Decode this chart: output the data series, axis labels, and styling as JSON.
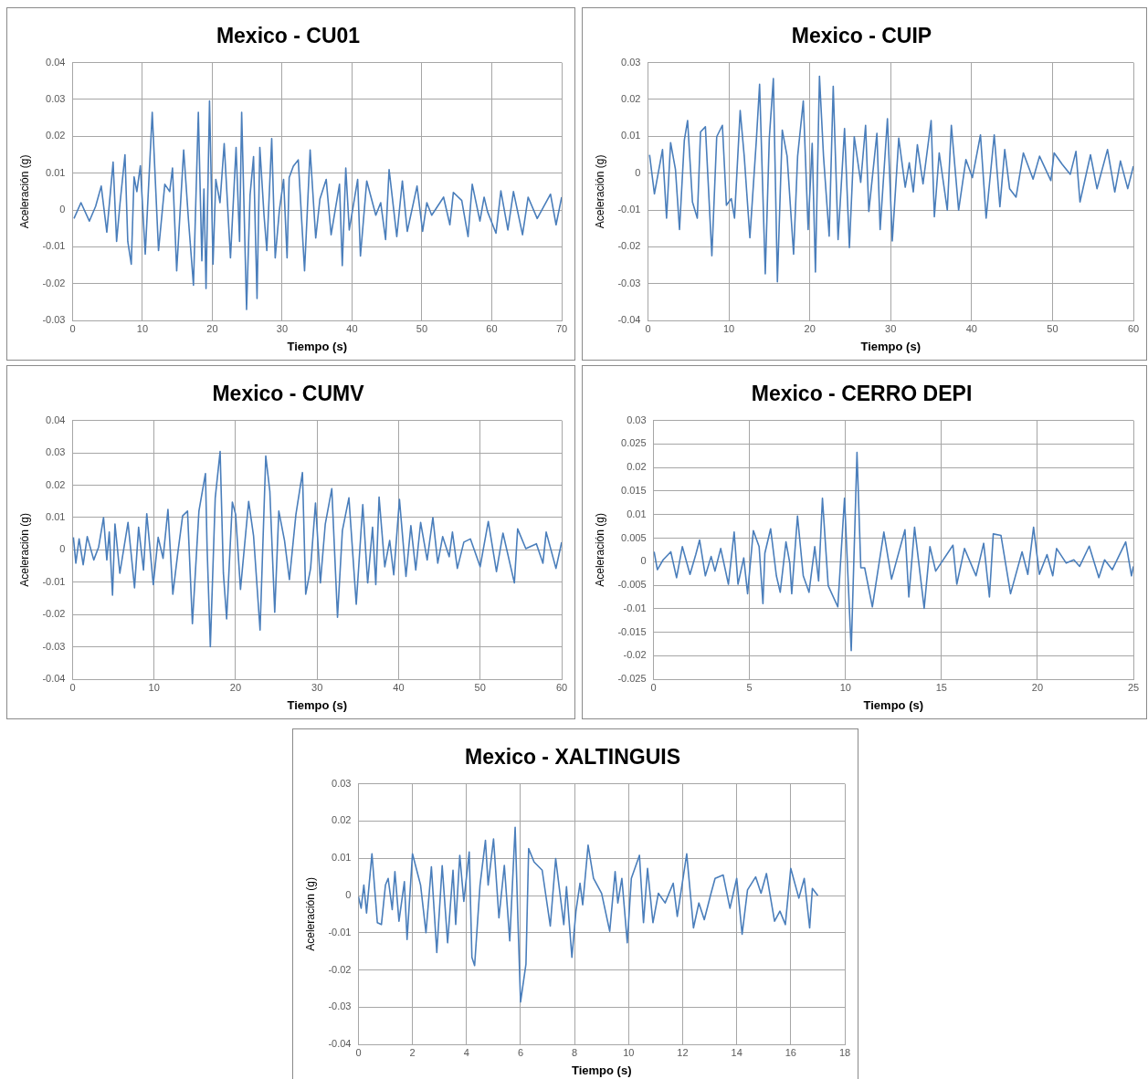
{
  "chart_data": [
    {
      "type": "line",
      "title": "Mexico - CU01",
      "xlabel": "Tiempo (s)",
      "ylabel": "Aceleración (g)",
      "color": "#4a7ebb",
      "grid": true,
      "xlim": [
        0,
        70
      ],
      "xticks": [
        0,
        10,
        20,
        30,
        40,
        50,
        60,
        70
      ],
      "ylim": [
        -0.03,
        0.04
      ],
      "yticks": [
        -0.03,
        -0.02,
        -0.01,
        0,
        0.01,
        0.02,
        0.03,
        0.04
      ],
      "x": [
        0.2,
        1.2,
        2.4,
        3.3,
        4.1,
        4.9,
        5.8,
        6.3,
        6.8,
        7.5,
        7.9,
        8.4,
        8.8,
        9.2,
        9.7,
        10.4,
        11.4,
        12.3,
        13.2,
        13.9,
        14.3,
        14.9,
        15.9,
        16.6,
        17.3,
        18.0,
        18.5,
        18.8,
        19.1,
        19.6,
        20.1,
        20.5,
        21.1,
        21.7,
        22.6,
        23.4,
        23.9,
        24.2,
        24.9,
        25.4,
        25.9,
        26.4,
        26.8,
        27.4,
        27.8,
        28.5,
        29.0,
        29.6,
        30.2,
        30.7,
        31.0,
        31.6,
        32.3,
        33.2,
        34.0,
        34.8,
        35.4,
        36.3,
        37.0,
        38.2,
        38.6,
        39.1,
        39.6,
        40.8,
        41.2,
        42.1,
        43.4,
        44.1,
        44.8,
        45.3,
        46.4,
        47.2,
        47.9,
        49.3,
        50.1,
        50.7,
        51.4,
        53.1,
        54.0,
        54.5,
        55.7,
        56.6,
        57.2,
        58.3,
        58.9,
        59.4,
        60.6,
        61.3,
        62.3,
        63.1,
        64.4,
        65.2,
        66.5,
        68.4,
        69.2,
        70.0
      ],
      "values": [
        -0.0023,
        0.002,
        -0.003,
        0.001,
        0.0065,
        -0.006,
        0.013,
        -0.0085,
        0.002,
        0.015,
        -0.0085,
        -0.0147,
        0.009,
        0.005,
        0.012,
        -0.012,
        0.0265,
        -0.011,
        0.007,
        0.005,
        0.0114,
        -0.0165,
        0.0163,
        -0.003,
        -0.0204,
        0.0265,
        -0.0138,
        0.0057,
        -0.0213,
        0.0296,
        -0.0147,
        0.0083,
        0.002,
        0.018,
        -0.013,
        0.017,
        -0.0085,
        0.0265,
        -0.027,
        0.004,
        0.0145,
        -0.024,
        0.017,
        -0.0014,
        -0.011,
        0.0194,
        -0.013,
        0,
        0.0083,
        -0.013,
        0.0088,
        0.0119,
        0.0136,
        -0.0165,
        0.0163,
        -0.0076,
        0.003,
        0.0083,
        -0.0067,
        0.007,
        -0.0151,
        0.0114,
        -0.0054,
        0.0083,
        -0.0125,
        0.0079,
        -0.0014,
        0.002,
        -0.008,
        0.011,
        -0.0072,
        0.0079,
        -0.0058,
        0.0065,
        -0.0058,
        0.002,
        -0.0014,
        0.0035,
        -0.004,
        0.0048,
        0.0026,
        -0.0072,
        0.007,
        -0.003,
        0.0035,
        -0.0005,
        -0.0063,
        0.0052,
        -0.0054,
        0.005,
        -0.0067,
        0.0035,
        -0.0023,
        0.0043,
        -0.004,
        0.0035
      ]
    },
    {
      "type": "line",
      "title": "Mexico - CUIP",
      "xlabel": "Tiempo (s)",
      "ylabel": "Aceleración (g)",
      "color": "#4a7ebb",
      "grid": true,
      "xlim": [
        0,
        60
      ],
      "xticks": [
        0,
        10,
        20,
        30,
        40,
        50,
        60
      ],
      "ylim": [
        -0.04,
        0.03
      ],
      "yticks": [
        -0.04,
        -0.03,
        -0.02,
        -0.01,
        0,
        0.01,
        0.02,
        0.03
      ],
      "x": [
        0.2,
        0.8,
        1.8,
        2.3,
        2.8,
        3.4,
        3.9,
        4.5,
        4.9,
        5.5,
        6.1,
        6.5,
        7.1,
        7.9,
        8.5,
        9.2,
        9.7,
        10.3,
        10.7,
        11.4,
        11.9,
        12.6,
        13.4,
        13.8,
        14.5,
        15.0,
        15.5,
        16.0,
        16.6,
        17.2,
        18.0,
        18.5,
        19.2,
        19.8,
        20.3,
        20.7,
        21.2,
        21.7,
        22.4,
        22.9,
        23.5,
        24.3,
        24.9,
        25.5,
        26.3,
        26.9,
        27.3,
        28.3,
        28.7,
        29.6,
        30.2,
        31.0,
        31.8,
        32.3,
        32.8,
        33.3,
        34.0,
        35.0,
        35.4,
        36.0,
        37.0,
        37.5,
        38.4,
        39.3,
        40.1,
        41.1,
        41.8,
        42.8,
        43.5,
        44.1,
        44.7,
        45.5,
        46.4,
        47.6,
        48.4,
        49.8,
        50.2,
        51.2,
        52.2,
        52.9,
        53.4,
        54.7,
        55.5,
        56.8,
        57.7,
        58.4,
        59.3,
        60.0
      ],
      "values": [
        0.005,
        -0.0056,
        0.0064,
        -0.0122,
        0.0083,
        0.001,
        -0.0153,
        0.009,
        0.0143,
        -0.0078,
        -0.0122,
        0.0112,
        0.0126,
        -0.0224,
        0.0099,
        0.013,
        -0.0087,
        -0.0069,
        -0.0122,
        0.017,
        0.0046,
        -0.0175,
        0.009,
        0.0241,
        -0.0273,
        0.0095,
        0.0257,
        -0.0295,
        0.0117,
        0.0046,
        -0.022,
        0.0046,
        0.0196,
        -0.0153,
        0.0081,
        -0.0268,
        0.0263,
        0.0046,
        -0.0171,
        0.0236,
        -0.018,
        0.0121,
        -0.0202,
        0.0099,
        -0.0025,
        0.013,
        -0.0104,
        0.0108,
        -0.0153,
        0.0148,
        -0.0184,
        0.0095,
        -0.0038,
        0.0028,
        -0.0051,
        0.0077,
        -0.0029,
        0.0143,
        -0.0118,
        0.0055,
        -0.01,
        0.013,
        -0.01,
        0.0037,
        -0.0012,
        0.0104,
        -0.0122,
        0.0104,
        -0.0091,
        0.0064,
        -0.0042,
        -0.0065,
        0.0055,
        -0.0016,
        0.0046,
        -0.002,
        0.0055,
        0.0024,
        -0.0003,
        0.0059,
        -0.0078,
        0.005,
        -0.0042,
        0.0064,
        -0.0051,
        0.0033,
        -0.0042,
        0.0019
      ]
    },
    {
      "type": "line",
      "title": "Mexico - CUMV",
      "xlabel": "Tiempo (s)",
      "ylabel": "Aceleración (g)",
      "color": "#4a7ebb",
      "grid": true,
      "xlim": [
        0,
        60
      ],
      "xticks": [
        0,
        10,
        20,
        30,
        40,
        50,
        60
      ],
      "ylim": [
        -0.04,
        0.04
      ],
      "yticks": [
        -0.04,
        -0.03,
        -0.02,
        -0.01,
        0,
        0.01,
        0.02,
        0.03,
        0.04
      ],
      "x": [
        0.1,
        0.4,
        0.8,
        1.3,
        1.8,
        2.6,
        3.2,
        3.8,
        4.2,
        4.5,
        4.9,
        5.2,
        5.8,
        6.8,
        7.6,
        8.1,
        8.7,
        9.1,
        9.9,
        10.5,
        11.1,
        11.7,
        12.3,
        12.9,
        13.5,
        14.1,
        14.7,
        15.5,
        16.3,
        16.5,
        16.9,
        17.5,
        18.1,
        18.5,
        18.9,
        19.6,
        20.0,
        20.6,
        21.6,
        22.2,
        23.0,
        23.7,
        24.2,
        24.8,
        25.3,
        26.0,
        26.6,
        27.4,
        28.2,
        28.6,
        29.2,
        29.8,
        30.4,
        31.0,
        31.8,
        32.5,
        33.1,
        33.9,
        34.8,
        35.6,
        36.2,
        36.8,
        37.2,
        37.6,
        38.3,
        38.9,
        39.4,
        40.1,
        40.9,
        41.5,
        42.1,
        42.7,
        43.5,
        44.2,
        44.8,
        45.4,
        46.2,
        46.6,
        47.2,
        48.0,
        48.8,
        50.0,
        51.0,
        52.0,
        52.8,
        54.2,
        54.6,
        55.6,
        56.9,
        57.7,
        58.1,
        59.3,
        60.0
      ],
      "values": [
        0.0039,
        -0.0041,
        0.0034,
        -0.0046,
        0.0041,
        -0.0031,
        0.0009,
        0.01,
        -0.0031,
        0.0055,
        -0.014,
        0.008,
        -0.0072,
        0.0085,
        -0.0117,
        0.007,
        -0.0062,
        0.0112,
        -0.0107,
        0.0039,
        -0.0026,
        0.0125,
        -0.0137,
        -0.0011,
        0.0105,
        0.012,
        -0.0228,
        0.012,
        0.0236,
        0.0009,
        -0.0299,
        0.0161,
        0.0304,
        -0.0072,
        -0.0213,
        0.0148,
        0.011,
        -0.0122,
        0.015,
        0.0044,
        -0.0248,
        0.029,
        0.0181,
        -0.0193,
        0.012,
        0.0029,
        -0.0092,
        0.011,
        0.0239,
        -0.0137,
        -0.0057,
        0.0145,
        -0.0102,
        0.008,
        0.0189,
        -0.0208,
        0.006,
        0.0161,
        -0.0168,
        0.014,
        -0.0102,
        0.007,
        -0.0107,
        0.0163,
        -0.0052,
        0.0029,
        -0.0077,
        0.0156,
        -0.0082,
        0.0075,
        -0.0062,
        0.0085,
        -0.0031,
        0.01,
        -0.0041,
        0.0041,
        -0.0021,
        0.0055,
        -0.0057,
        0.0024,
        0.0034,
        -0.0052,
        0.0088,
        -0.0067,
        0.0052,
        -0.0102,
        0.0065,
        0.0004,
        0.0019,
        -0.0041,
        0.0055,
        -0.0057,
        0.0024
      ]
    },
    {
      "type": "line",
      "title": "Mexico - CERRO DEPI",
      "xlabel": "Tiempo (s)",
      "ylabel": "Aceleración (g)",
      "color": "#4a7ebb",
      "grid": true,
      "xlim": [
        0,
        25
      ],
      "xticks": [
        0,
        5,
        10,
        15,
        20,
        25
      ],
      "ylim": [
        -0.025,
        0.03
      ],
      "yticks": [
        -0.025,
        -0.02,
        -0.015,
        -0.01,
        -0.005,
        0,
        0.005,
        0.01,
        0.015,
        0.02,
        0.025,
        0.03
      ],
      "x": [
        0.03,
        0.2,
        0.5,
        0.9,
        1.2,
        1.5,
        1.9,
        2.2,
        2.4,
        2.7,
        3.0,
        3.2,
        3.5,
        3.9,
        4.2,
        4.4,
        4.7,
        4.9,
        5.2,
        5.5,
        5.7,
        5.8,
        6.1,
        6.4,
        6.6,
        6.9,
        7.1,
        7.2,
        7.5,
        7.8,
        8.1,
        8.4,
        8.6,
        8.8,
        9.1,
        9.6,
        9.95,
        10.3,
        10.6,
        10.8,
        11.0,
        11.4,
        12.0,
        12.4,
        13.1,
        13.3,
        13.6,
        14.1,
        14.4,
        14.7,
        15.6,
        15.8,
        16.2,
        16.8,
        17.2,
        17.5,
        17.7,
        18.1,
        18.6,
        19.2,
        19.5,
        19.8,
        20.1,
        20.5,
        20.8,
        21.0,
        21.5,
        21.9,
        22.2,
        22.7,
        23.2,
        23.5,
        23.9,
        24.6,
        24.9,
        25.0
      ],
      "values": [
        0.0021,
        -0.0017,
        0.0004,
        0.0021,
        -0.0034,
        0.0032,
        -0.0027,
        0.0015,
        0.0046,
        -0.003,
        0.0011,
        -0.002,
        0.0028,
        -0.0048,
        0.0063,
        -0.0048,
        0.0008,
        -0.0068,
        0.0066,
        0.0032,
        -0.0089,
        0.0018,
        0.007,
        -0.003,
        -0.0065,
        0.0042,
        -0.0003,
        -0.0068,
        0.0097,
        -0.003,
        -0.0065,
        0.0032,
        -0.0041,
        0.0135,
        -0.0051,
        -0.0096,
        0.0135,
        -0.0189,
        0.0232,
        -0.0013,
        -0.0013,
        -0.0096,
        0.0063,
        -0.0037,
        0.0068,
        -0.0075,
        0.0073,
        -0.0099,
        0.0032,
        -0.002,
        0.0035,
        -0.0048,
        0.0028,
        -0.003,
        0.0039,
        -0.0075,
        0.0059,
        0.0056,
        -0.0068,
        0.0021,
        -0.0027,
        0.0073,
        -0.0027,
        0.0015,
        -0.003,
        0.0028,
        -0.0003,
        0.0004,
        -0.001,
        0.0033,
        -0.0034,
        0.0004,
        -0.0017,
        0.0042,
        -0.003,
        -0.001
      ]
    },
    {
      "type": "line",
      "title": "Mexico - XALTINGUIS",
      "xlabel": "Tiempo (s)",
      "ylabel": "Aceleración (g)",
      "color": "#4a7ebb",
      "grid": true,
      "xlim": [
        0,
        18
      ],
      "xticks": [
        0,
        2,
        4,
        6,
        8,
        10,
        12,
        14,
        16,
        18
      ],
      "ylim": [
        -0.04,
        0.03
      ],
      "yticks": [
        -0.04,
        -0.03,
        -0.02,
        -0.01,
        0,
        0.01,
        0.02,
        0.03
      ],
      "x": [
        0,
        0.1,
        0.2,
        0.3,
        0.5,
        0.7,
        0.85,
        1.0,
        1.1,
        1.25,
        1.35,
        1.5,
        1.7,
        1.8,
        2.0,
        2.3,
        2.5,
        2.7,
        2.9,
        3.1,
        3.3,
        3.5,
        3.6,
        3.75,
        3.9,
        4.1,
        4.2,
        4.3,
        4.5,
        4.7,
        4.8,
        5.0,
        5.2,
        5.4,
        5.6,
        5.8,
        5.9,
        6.0,
        6.2,
        6.3,
        6.5,
        6.8,
        7.1,
        7.3,
        7.6,
        7.7,
        7.9,
        8.05,
        8.2,
        8.3,
        8.5,
        8.7,
        9.0,
        9.3,
        9.5,
        9.6,
        9.75,
        9.95,
        10.1,
        10.4,
        10.55,
        10.7,
        10.9,
        11.1,
        11.35,
        11.65,
        11.8,
        12.15,
        12.4,
        12.6,
        12.8,
        13.05,
        13.2,
        13.5,
        13.75,
        14.0,
        14.2,
        14.4,
        14.7,
        14.9,
        15.1,
        15.4,
        15.6,
        15.8,
        16.0,
        16.3,
        16.5,
        16.7,
        16.8,
        17.0
      ],
      "values": [
        -0.0003,
        -0.0034,
        0.0028,
        -0.0047,
        0.0112,
        -0.0073,
        -0.0078,
        0.0028,
        0.0046,
        -0.0038,
        0.0064,
        -0.0069,
        0.0037,
        -0.0118,
        0.0112,
        0.0028,
        -0.01,
        0.0077,
        -0.0153,
        0.008,
        -0.0127,
        0.0068,
        -0.0078,
        0.0108,
        -0.0016,
        0.0117,
        -0.0166,
        -0.0188,
        0.0028,
        0.0148,
        0.0028,
        0.0152,
        -0.006,
        0.0081,
        -0.0122,
        0.0183,
        -0.006,
        -0.0286,
        -0.0184,
        0.0126,
        0.009,
        0.0068,
        -0.0082,
        0.0099,
        -0.0078,
        0.0024,
        -0.0166,
        -0.0042,
        0.0033,
        -0.0025,
        0.0135,
        0.0046,
        0.0006,
        -0.0096,
        0.0064,
        -0.002,
        0.0046,
        -0.0127,
        0.0046,
        0.0108,
        -0.0073,
        0.0073,
        -0.0073,
        0.0006,
        -0.002,
        0.0033,
        -0.0056,
        0.0112,
        -0.0087,
        -0.002,
        -0.0065,
        0.0006,
        0.0046,
        0.0055,
        -0.0034,
        0.0046,
        -0.0104,
        0.0015,
        0.005,
        0.0006,
        0.0059,
        -0.0069,
        -0.0042,
        -0.0078,
        0.0073,
        -0.0007,
        0.0046,
        -0.0087,
        0.0019,
        0
      ]
    }
  ]
}
